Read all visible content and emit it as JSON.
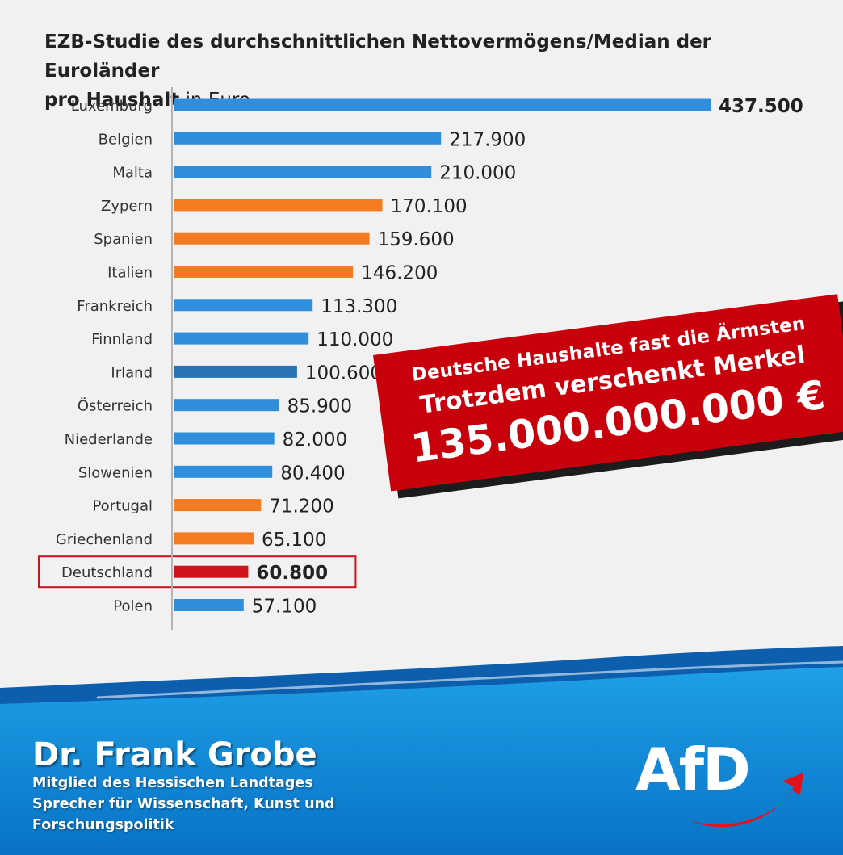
{
  "title": {
    "line1": "EZB-Studie des durchschnittlichen Nettovermögens/Median der Euroländer",
    "line2_bold": "pro Haushalt",
    "line2_rest": " in Euro"
  },
  "chart_data": {
    "type": "bar",
    "orientation": "horizontal",
    "categories": [
      "Luxemburg",
      "Belgien",
      "Malta",
      "Zypern",
      "Spanien",
      "Italien",
      "Frankreich",
      "Finnland",
      "Irland",
      "Österreich",
      "Niederlande",
      "Slowenien",
      "Portugal",
      "Griechenland",
      "Deutschland",
      "Polen"
    ],
    "values": [
      437500,
      217900,
      210000,
      170100,
      159600,
      146200,
      113300,
      110000,
      100600,
      85900,
      82000,
      80400,
      71200,
      65100,
      60800,
      57100
    ],
    "labels": [
      "437.500",
      "217.900",
      "210.000",
      "170.100",
      "159.600",
      "146.200",
      "113.300",
      "110.000",
      "100.600",
      "85.900",
      "82.000",
      "80.400",
      "71.200",
      "65.100",
      "60.800",
      "57.100"
    ],
    "colors": [
      "#2f8fdc",
      "#2f8fdc",
      "#2f8fdc",
      "#f47b1f",
      "#f47b1f",
      "#f47b1f",
      "#2f8fdc",
      "#2f8fdc",
      "#2a73b4",
      "#2f8fdc",
      "#2f8fdc",
      "#2f8fdc",
      "#f47b1f",
      "#f47b1f",
      "#d0121a",
      "#2f8fdc"
    ],
    "bold_labels": [
      "Luxemburg",
      "Deutschland"
    ],
    "highlight": "Deutschland",
    "xlim": [
      0,
      437500
    ],
    "grid": false
  },
  "banner": {
    "line1": "Deutsche Haushalte fast die Ärmsten",
    "line2": "Trotzdem verschenkt Merkel",
    "line3": "135.000.000.000 €"
  },
  "footer": {
    "name": "Dr. Frank Grobe",
    "lines": [
      "Mitglied des Hessischen Landtages",
      "Sprecher für Wissenschaft, Kunst und",
      "Forschungspolitik"
    ]
  },
  "logo": {
    "text": "AfD"
  },
  "colors": {
    "blue_bar": "#2f8fdc",
    "orange_bar": "#f47b1f",
    "red": "#c8000b",
    "footer_blue": "#0a8fd8"
  }
}
